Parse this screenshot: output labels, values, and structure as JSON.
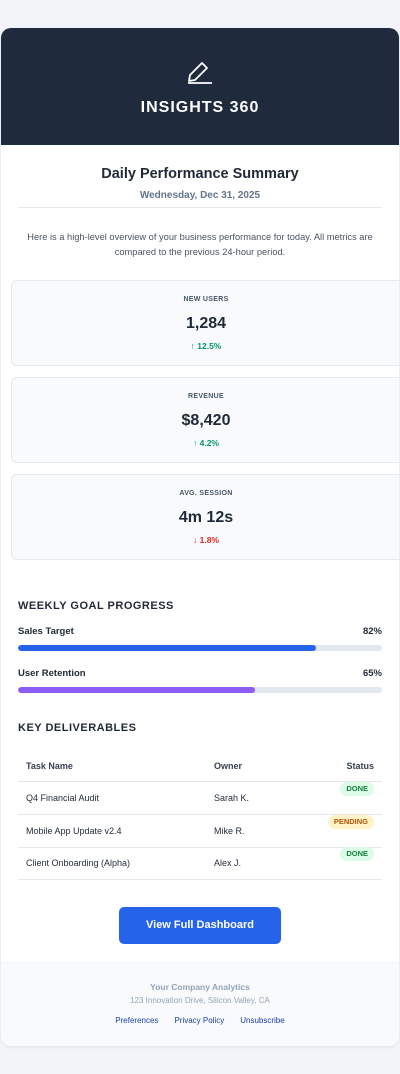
{
  "header": {
    "title": "INSIGHTS 360"
  },
  "summary": {
    "title": "Daily Performance Summary",
    "date": "Wednesday, Dec 31, 2025",
    "intro": "Here is a high-level overview of your business performance for today. All metrics are compared to the previous 24-hour period."
  },
  "metrics": [
    {
      "label": "NEW USERS",
      "value": "1,284",
      "change": "↑ 12.5%",
      "color": "#059669"
    },
    {
      "label": "REVENUE",
      "value": "$8,420",
      "change": "↑ 4.2%",
      "color": "#059669"
    },
    {
      "label": "AVG. SESSION",
      "value": "4m 12s",
      "change": "↓ 1.8%",
      "color": "#dc2626"
    }
  ],
  "goals": {
    "title": "WEEKLY GOAL PROGRESS",
    "items": [
      {
        "name": "Sales Target",
        "progress": {
          "value": 82,
          "label": "82%"
        },
        "color": "#2563eb"
      },
      {
        "name": "User Retention",
        "progress": {
          "value": 65,
          "label": "65%"
        },
        "color": "#8b5cf6"
      }
    ]
  },
  "table": {
    "title": "KEY DELIVERABLES",
    "columns": [
      "Task Name",
      "Owner",
      "Status"
    ],
    "rows": [
      {
        "task": "Q4 Financial Audit",
        "owner": "Sarah K.",
        "status": "DONE",
        "status_bg": "#dcfce7",
        "status_fg": "#15803d"
      },
      {
        "task": "Mobile App Update v2.4",
        "owner": "Mike R.",
        "status": "PENDING",
        "status_bg": "#fef3c7",
        "status_fg": "#b45309"
      },
      {
        "task": "Client Onboarding (Alpha)",
        "owner": "Alex J.",
        "status": "DONE",
        "status_bg": "#dcfce7",
        "status_fg": "#15803d"
      }
    ]
  },
  "button": {
    "label": "View Full Dashboard"
  },
  "footer": {
    "company": "Your Company Analytics",
    "address": "123 Innovation Drive, Silicon Valley, CA",
    "links": [
      "Preferences",
      "Privacy Policy",
      "Unsubscribe"
    ]
  }
}
